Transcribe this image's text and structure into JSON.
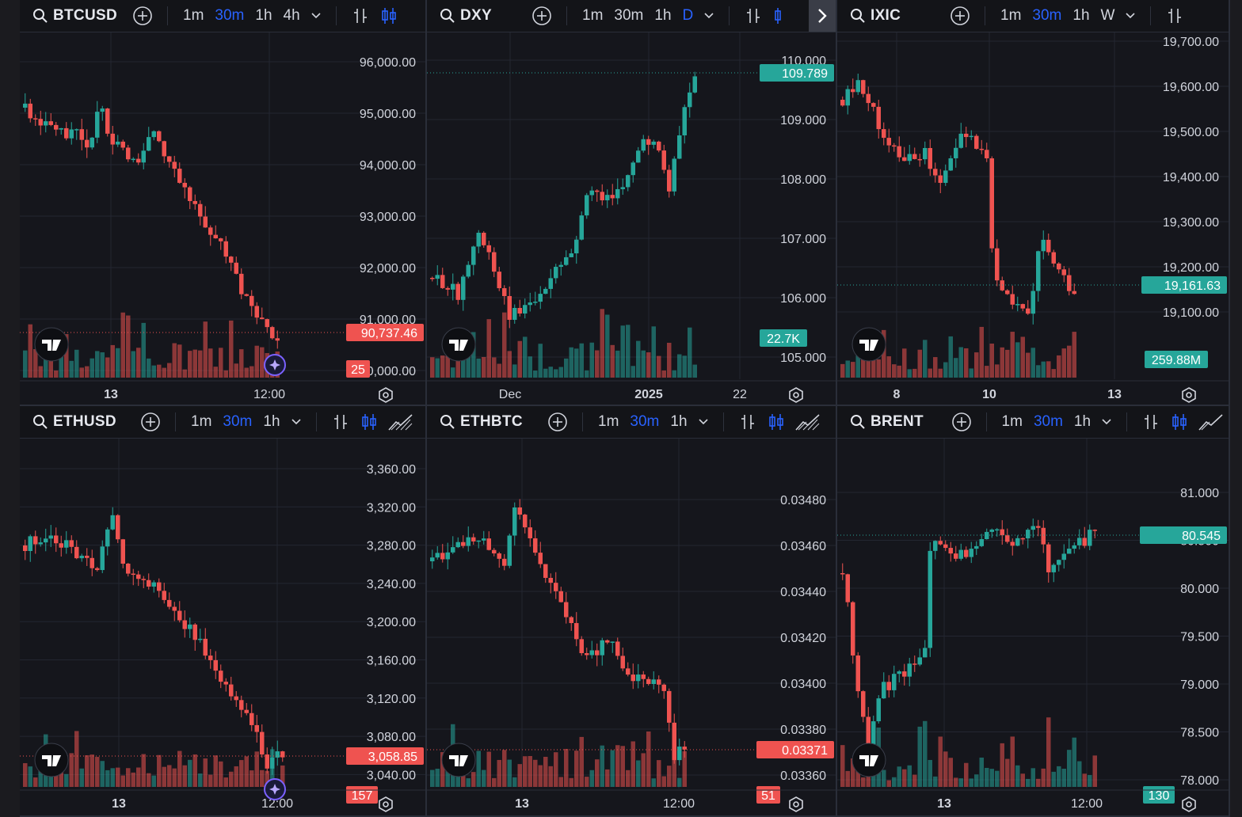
{
  "colors": {
    "up": "#26a69a",
    "down": "#ef5350",
    "accent": "#2962ff",
    "bg": "#15161c",
    "grid": "#232631",
    "text": "#d1d4dc"
  },
  "panels": [
    {
      "symbol": "BTCUSD",
      "timeframes": [
        "1m",
        "30m",
        "1h",
        "4h"
      ],
      "active_tf": "30m",
      "yticks": [
        "96,000.00",
        "95,000.00",
        "94,000.00",
        "93,000.00",
        "92,000.00",
        "91,000.00",
        "90,000.00"
      ],
      "xticks": [
        "13",
        "12:00"
      ],
      "price_label": "90,737.46",
      "price_color": "down",
      "vol_label": "25",
      "vol_color": "down",
      "chart_type_icons": [
        "bar-chart-icon",
        "candle-chart-icon"
      ]
    },
    {
      "symbol": "DXY",
      "timeframes": [
        "1m",
        "30m",
        "1h",
        "D"
      ],
      "active_tf": "D",
      "yticks": [
        "110.000",
        "109.000",
        "108.000",
        "107.000",
        "106.000",
        "105.000"
      ],
      "xticks": [
        "Dec",
        "2025",
        "22"
      ],
      "price_label": "109.789",
      "price_color": "up",
      "vol_label": "22.7K",
      "vol_color": "up",
      "chart_type_icons": [
        "bar-chart-icon",
        "candle-chart-icon"
      ]
    },
    {
      "symbol": "IXIC",
      "timeframes": [
        "1m",
        "30m",
        "1h",
        "W"
      ],
      "active_tf": "30m",
      "yticks": [
        "19,700.00",
        "19,600.00",
        "19,500.00",
        "19,400.00",
        "19,300.00",
        "19,200.00",
        "19,100.00"
      ],
      "xticks": [
        "8",
        "10",
        "13"
      ],
      "price_label": "19,161.63",
      "price_color": "up",
      "vol_label": "259.88M",
      "vol_color": "up",
      "chart_type_icons": [
        "bar-chart-icon"
      ]
    },
    {
      "symbol": "ETHUSD",
      "timeframes": [
        "1m",
        "30m",
        "1h"
      ],
      "active_tf": "30m",
      "yticks": [
        "3,360.00",
        "3,320.00",
        "3,280.00",
        "3,240.00",
        "3,200.00",
        "3,160.00",
        "3,120.00",
        "3,080.00",
        "3,040.00"
      ],
      "xticks": [
        "13",
        "12:00"
      ],
      "price_label": "3,058.85",
      "price_color": "down",
      "vol_label": "157",
      "vol_color": "down",
      "chart_type_icons": [
        "bar-chart-icon",
        "candle-chart-icon",
        "area-chart-icon"
      ]
    },
    {
      "symbol": "ETHBTC",
      "timeframes": [
        "1m",
        "30m",
        "1h"
      ],
      "active_tf": "30m",
      "yticks": [
        "0.03480",
        "0.03460",
        "0.03440",
        "0.03420",
        "0.03400",
        "0.03380",
        "0.03360"
      ],
      "xticks": [
        "13",
        "12:00"
      ],
      "price_label": "0.03371",
      "price_color": "down",
      "vol_label": "51",
      "vol_color": "down",
      "chart_type_icons": [
        "bar-chart-icon",
        "candle-chart-icon",
        "area-chart-icon"
      ]
    },
    {
      "symbol": "BRENT",
      "timeframes": [
        "1m",
        "30m",
        "1h"
      ],
      "active_tf": "30m",
      "yticks": [
        "81.000",
        "80.500",
        "80.000",
        "79.500",
        "79.000",
        "78.500",
        "78.000"
      ],
      "xticks": [
        "13",
        "12:00"
      ],
      "price_label": "80.545",
      "price_color": "up",
      "vol_label": "130",
      "vol_color": "up",
      "chart_type_icons": [
        "bar-chart-icon",
        "candle-chart-icon",
        "area-chart-icon"
      ]
    }
  ]
}
